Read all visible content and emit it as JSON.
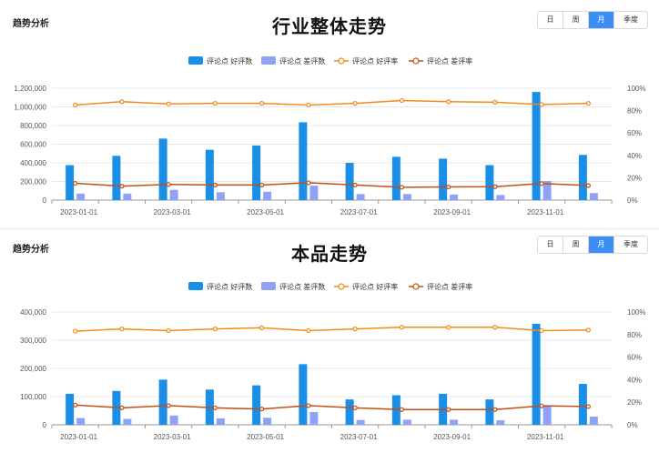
{
  "charts": [
    {
      "section_label": "趋势分析",
      "title": "行业整体走势",
      "period_tabs": [
        {
          "label": "日",
          "active": false
        },
        {
          "label": "周",
          "active": false
        },
        {
          "label": "月",
          "active": true
        },
        {
          "label": "季度",
          "active": false
        }
      ]
    },
    {
      "section_label": "趋势分析",
      "title": "本品走势",
      "period_tabs": [
        {
          "label": "日",
          "active": false
        },
        {
          "label": "周",
          "active": false
        },
        {
          "label": "月",
          "active": true
        },
        {
          "label": "季度",
          "active": false
        }
      ]
    }
  ],
  "chart_data": [
    {
      "type": "bar",
      "title": "行业整体走势",
      "categories": [
        "2023-01-01",
        "2023-02-01",
        "2023-03-01",
        "2023-04-01",
        "2023-05-01",
        "2023-06-01",
        "2023-07-01",
        "2023-08-01",
        "2023-09-01",
        "2023-10-01",
        "2023-11-01",
        "2023-12-01"
      ],
      "x_tick_labels": [
        "2023-01-01",
        "2023-03-01",
        "2023-05-01",
        "2023-07-01",
        "2023-09-01",
        "2023-11-01"
      ],
      "series": [
        {
          "name": "评论点 好评数",
          "type": "bar",
          "axis": "left",
          "color": "#1a8fe8",
          "values": [
            375000,
            475000,
            660000,
            540000,
            585000,
            835000,
            400000,
            465000,
            445000,
            375000,
            1160000,
            485000
          ]
        },
        {
          "name": "评论点 差评数",
          "type": "bar",
          "axis": "left",
          "color": "#8fa2f5",
          "values": [
            70000,
            70000,
            110000,
            85000,
            90000,
            155000,
            65000,
            65000,
            60000,
            55000,
            205000,
            75000
          ]
        },
        {
          "name": "评论点 好评率",
          "type": "line",
          "axis": "right",
          "color": "#f5891a",
          "values": [
            85,
            88,
            86,
            86.5,
            86.5,
            85,
            86.5,
            89,
            88,
            87.5,
            85.5,
            86.5
          ]
        },
        {
          "name": "评论点 差评率",
          "type": "line",
          "axis": "right",
          "color": "#c24e14",
          "values": [
            15,
            12.5,
            14,
            13.5,
            13.5,
            15.5,
            13.5,
            11.5,
            11.8,
            12,
            14.8,
            13
          ]
        }
      ],
      "y_left": {
        "min": 0,
        "max": 1200000,
        "ticks": [
          "0",
          "200,000",
          "400,000",
          "600,000",
          "800,000",
          "1,000,000",
          "1,200,000"
        ]
      },
      "y_right": {
        "min": 0,
        "max": 100,
        "ticks": [
          "0%",
          "20%",
          "40%",
          "60%",
          "80%",
          "100%"
        ]
      },
      "legend_position": "top-center",
      "grid": true
    },
    {
      "type": "bar",
      "title": "本品走势",
      "categories": [
        "2023-01-01",
        "2023-02-01",
        "2023-03-01",
        "2023-04-01",
        "2023-05-01",
        "2023-06-01",
        "2023-07-01",
        "2023-08-01",
        "2023-09-01",
        "2023-10-01",
        "2023-11-01",
        "2023-12-01"
      ],
      "x_tick_labels": [
        "2023-01-01",
        "2023-03-01",
        "2023-05-01",
        "2023-07-01",
        "2023-09-01",
        "2023-11-01"
      ],
      "series": [
        {
          "name": "评论点 好评数",
          "type": "bar",
          "axis": "left",
          "color": "#1a8fe8",
          "values": [
            110000,
            120000,
            160000,
            125000,
            140000,
            215000,
            90000,
            105000,
            110000,
            90000,
            358000,
            145000
          ]
        },
        {
          "name": "评论点 差评数",
          "type": "bar",
          "axis": "left",
          "color": "#8fa2f5",
          "values": [
            24000,
            21000,
            33000,
            23000,
            25000,
            45000,
            17000,
            18000,
            18000,
            16000,
            65000,
            29000
          ]
        },
        {
          "name": "评论点 好评率",
          "type": "line",
          "axis": "right",
          "color": "#f5891a",
          "values": [
            83,
            85,
            83.5,
            85,
            86,
            83.5,
            85,
            86.5,
            86.5,
            86.5,
            83.5,
            84
          ]
        },
        {
          "name": "评论点 差评率",
          "type": "line",
          "axis": "right",
          "color": "#c24e14",
          "values": [
            17.5,
            15,
            17,
            15,
            14,
            17,
            15,
            13.5,
            13.5,
            13.5,
            16.8,
            16.2
          ]
        }
      ],
      "y_left": {
        "min": 0,
        "max": 400000,
        "ticks": [
          "0",
          "100,000",
          "200,000",
          "300,000",
          "400,000"
        ]
      },
      "y_right": {
        "min": 0,
        "max": 100,
        "ticks": [
          "0%",
          "20%",
          "40%",
          "60%",
          "80%",
          "100%"
        ]
      },
      "legend_position": "top-center",
      "grid": true
    }
  ]
}
